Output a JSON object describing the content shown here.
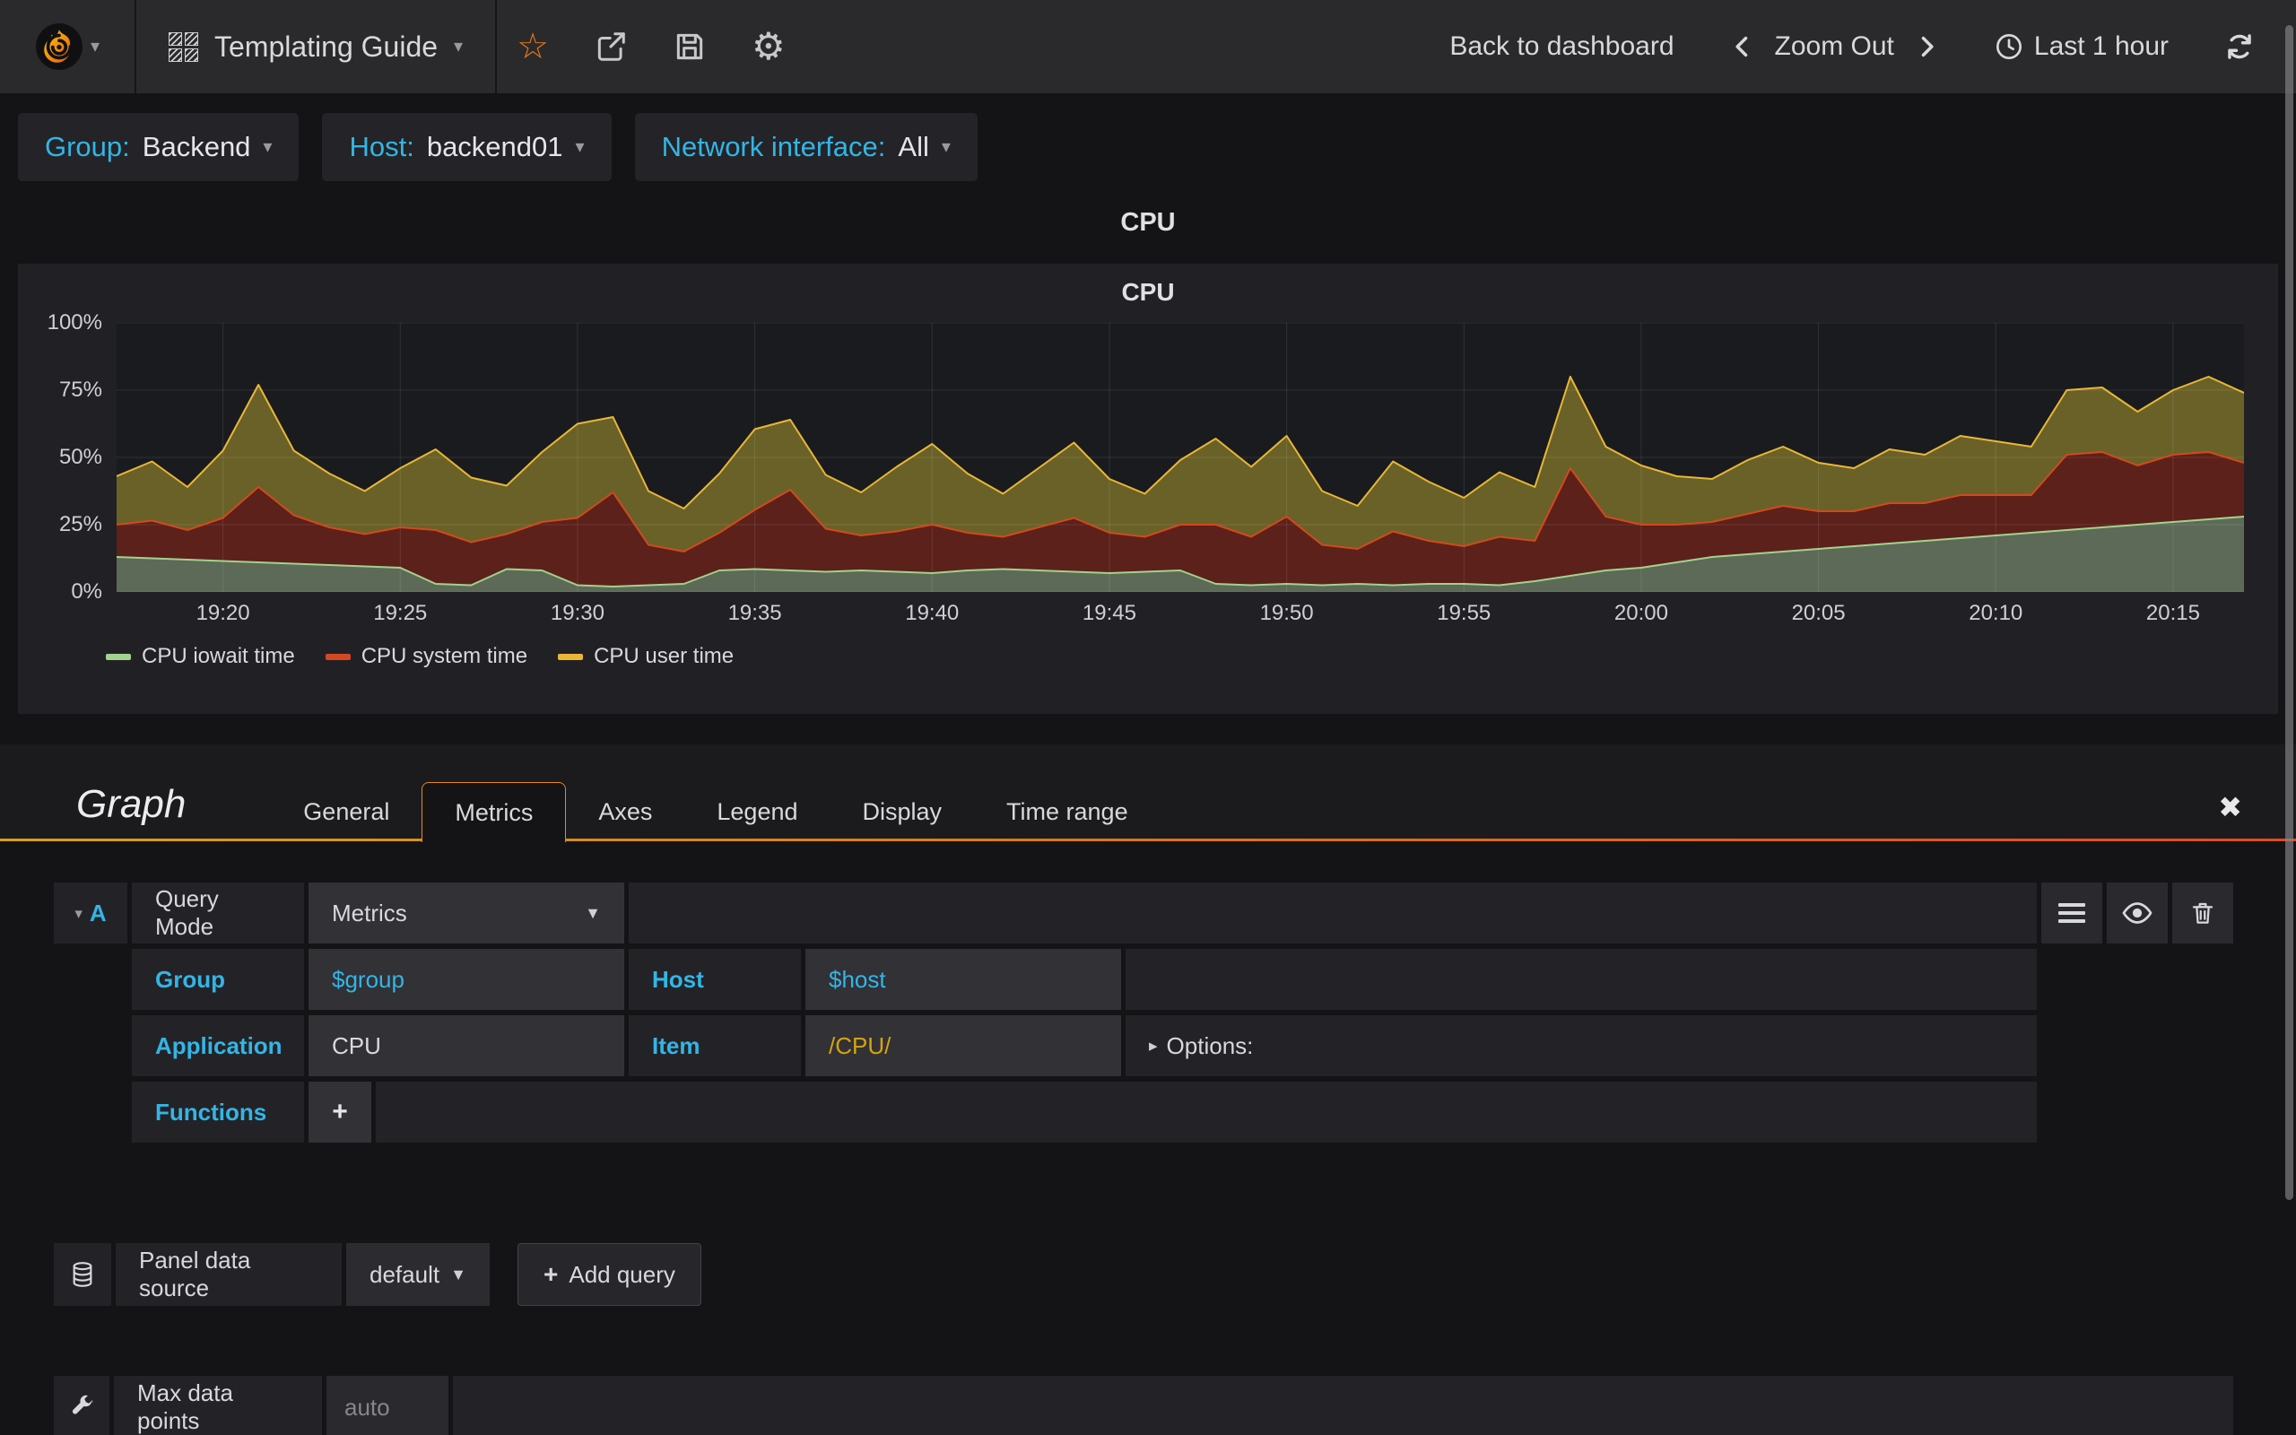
{
  "ui_colors": {
    "accent_cyan": "#33b5e5",
    "accent_orange": "#eb7b18",
    "regex_yellow": "#d6a30e",
    "tab_border_orange": "#df8d17",
    "tab_underline_gradient": [
      "#d9a10d",
      "#e04a1e"
    ]
  },
  "navbar": {
    "dashboard_title": "Templating Guide",
    "back_label": "Back to dashboard",
    "zoom_out_label": "Zoom Out",
    "time_range_label": "Last 1 hour"
  },
  "variables": [
    {
      "label": "Group:",
      "value": "Backend"
    },
    {
      "label": "Host:",
      "value": "backend01"
    },
    {
      "label": "Network interface:",
      "value": "All"
    }
  ],
  "panel": {
    "header_title": "CPU",
    "graph_title": "CPU"
  },
  "chart_data": {
    "type": "area",
    "stacked": true,
    "title": "CPU",
    "x_start": "19:17",
    "x_end": "20:17",
    "x_step_minutes": 1,
    "x_span_minutes": 60,
    "x_tick_minutes": [
      3,
      8,
      13,
      18,
      23,
      28,
      33,
      38,
      43,
      48,
      53,
      58
    ],
    "x_ticks": [
      "19:20",
      "19:25",
      "19:30",
      "19:35",
      "19:40",
      "19:45",
      "19:50",
      "19:55",
      "20:00",
      "20:05",
      "20:10",
      "20:15"
    ],
    "y_tick_labels": [
      "100%",
      "75%",
      "50%",
      "25%",
      "0%"
    ],
    "ylim": [
      0,
      100
    ],
    "y_unit": "percent",
    "grid": true,
    "legend_position": "bottom",
    "series": [
      {
        "name": "CPU iowait time",
        "color": "#a3d28e",
        "fill": "#5d6a57",
        "values": [
          13,
          12.5,
          12,
          11.5,
          11,
          10.5,
          10,
          9.5,
          9,
          3,
          2.5,
          8.5,
          8,
          2.5,
          2,
          2.5,
          3,
          8,
          8.5,
          8,
          7.5,
          8,
          7.5,
          7,
          8,
          8.5,
          8,
          7.5,
          7,
          7.5,
          8,
          3,
          2.5,
          3,
          2.5,
          3,
          2.5,
          3,
          3,
          2.5,
          4,
          6,
          8,
          9,
          11,
          13,
          14,
          15,
          16,
          17,
          18,
          19,
          20,
          21,
          22,
          23,
          24,
          25,
          26,
          27,
          28
        ]
      },
      {
        "name": "CPU system time",
        "color": "#d2491f",
        "fill": "#5c211a",
        "values": [
          12,
          14,
          11,
          16,
          28,
          18,
          14,
          12,
          15,
          20,
          16,
          13,
          18,
          25,
          35,
          15,
          12,
          14,
          22,
          30,
          16,
          13,
          15,
          18,
          14,
          12,
          16,
          20,
          15,
          13,
          17,
          22,
          18,
          25,
          15,
          13,
          20,
          16,
          14,
          18,
          15,
          40,
          20,
          16,
          14,
          13,
          15,
          17,
          14,
          13,
          15,
          14,
          16,
          15,
          14,
          28,
          28,
          22,
          25,
          25,
          20
        ]
      },
      {
        "name": "CPU user time",
        "color": "#e9b735",
        "fill": "#6a6128",
        "values": [
          18,
          22,
          16,
          25,
          38,
          24,
          20,
          16,
          22,
          30,
          24,
          18,
          26,
          35,
          28,
          20,
          16,
          22,
          30,
          26,
          20,
          16,
          24,
          30,
          22,
          16,
          22,
          28,
          20,
          16,
          24,
          32,
          26,
          30,
          20,
          16,
          26,
          22,
          18,
          24,
          20,
          34,
          26,
          22,
          18,
          16,
          20,
          22,
          18,
          16,
          20,
          18,
          22,
          20,
          18,
          24,
          24,
          20,
          24,
          28,
          26
        ]
      }
    ]
  },
  "editor": {
    "panel_type_label": "Graph",
    "tabs": [
      "General",
      "Metrics",
      "Axes",
      "Legend",
      "Display",
      "Time range"
    ],
    "active_tab": "Metrics",
    "query": {
      "collapse_letter": "A",
      "query_mode_label": "Query Mode",
      "query_mode_value": "Metrics",
      "group_label": "Group",
      "group_value": "$group",
      "host_label": "Host",
      "host_value": "$host",
      "application_label": "Application",
      "application_value": "CPU",
      "item_label": "Item",
      "item_value": "/CPU/",
      "options_label": "Options:",
      "functions_label": "Functions",
      "add_function_label": "+"
    },
    "datasource_label": "Panel data source",
    "datasource_value": "default",
    "add_query_label": "Add query",
    "max_data_points_label": "Max data points",
    "max_data_points_placeholder": "auto"
  }
}
